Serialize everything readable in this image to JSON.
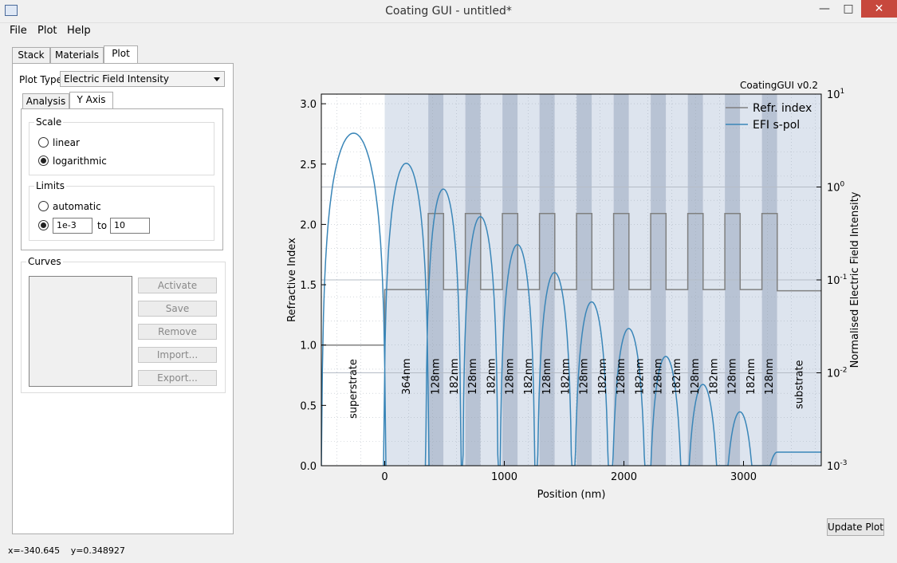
{
  "window": {
    "title": "Coating GUI - untitled*",
    "minimize": "—",
    "maximize": "□",
    "close": "✕"
  },
  "menu": [
    "File",
    "Plot",
    "Help"
  ],
  "main_tabs": [
    "Stack",
    "Materials",
    "Plot"
  ],
  "plot_type": {
    "label": "Plot Type",
    "value": "Electric Field Intensity"
  },
  "sub_tabs": [
    "Analysis",
    "Y Axis"
  ],
  "scale": {
    "title": "Scale",
    "options": [
      "linear",
      "logarithmic"
    ],
    "selected": "logarithmic"
  },
  "limits": {
    "title": "Limits",
    "automatic": "automatic",
    "from": "1e-3",
    "to_label": "to",
    "to": "10"
  },
  "curves": {
    "title": "Curves",
    "buttons": [
      "Activate",
      "Save",
      "Remove",
      "Import...",
      "Export..."
    ]
  },
  "update_button": "Update Plot",
  "status": {
    "x": "x=-340.645",
    "y": "y=0.348927"
  },
  "chart_data": {
    "type": "line",
    "corner_label": "CoatingGUI v0.2",
    "xlabel": "Position (nm)",
    "ylabel": "Refractive Index",
    "y2label": "Normalised Electric Field Intensity",
    "xlim": [
      -530,
      3650
    ],
    "ylim": [
      0,
      3.08
    ],
    "y2lim": [
      0.001,
      10
    ],
    "y2_scale": "log",
    "x_ticks": [
      "0",
      "1000",
      "2000",
      "3000"
    ],
    "y_ticks": [
      "0.0",
      "0.5",
      "1.0",
      "1.5",
      "2.0",
      "2.5",
      "3.0"
    ],
    "y2_ticks": [
      "10-3",
      "10-2",
      "10-1",
      "100",
      "101"
    ],
    "legend": [
      "Refr. index",
      "EFI s-pol"
    ],
    "colors": {
      "index": "#808080",
      "efi": "#3a86b8",
      "layer_low": "#dde4ee",
      "layer_high": "#b8c3d4"
    },
    "layers": [
      {
        "label": "superstrate",
        "start": -530,
        "end": 0,
        "n": 1.0
      },
      {
        "label": "364nm",
        "start": 0,
        "end": 364,
        "n": 1.46
      },
      {
        "label": "128nm",
        "start": 364,
        "end": 492,
        "n": 2.09
      },
      {
        "label": "182nm",
        "start": 492,
        "end": 674,
        "n": 1.46
      },
      {
        "label": "128nm",
        "start": 674,
        "end": 802,
        "n": 2.09
      },
      {
        "label": "182nm",
        "start": 802,
        "end": 984,
        "n": 1.46
      },
      {
        "label": "128nm",
        "start": 984,
        "end": 1112,
        "n": 2.09
      },
      {
        "label": "182nm",
        "start": 1112,
        "end": 1294,
        "n": 1.46
      },
      {
        "label": "128nm",
        "start": 1294,
        "end": 1422,
        "n": 2.09
      },
      {
        "label": "182nm",
        "start": 1422,
        "end": 1604,
        "n": 1.46
      },
      {
        "label": "128nm",
        "start": 1604,
        "end": 1732,
        "n": 2.09
      },
      {
        "label": "182nm",
        "start": 1732,
        "end": 1914,
        "n": 1.46
      },
      {
        "label": "128nm",
        "start": 1914,
        "end": 2042,
        "n": 2.09
      },
      {
        "label": "182nm",
        "start": 2042,
        "end": 2224,
        "n": 1.46
      },
      {
        "label": "128nm",
        "start": 2224,
        "end": 2352,
        "n": 2.09
      },
      {
        "label": "182nm",
        "start": 2352,
        "end": 2534,
        "n": 1.46
      },
      {
        "label": "128nm",
        "start": 2534,
        "end": 2662,
        "n": 2.09
      },
      {
        "label": "182nm",
        "start": 2662,
        "end": 2844,
        "n": 1.46
      },
      {
        "label": "128nm",
        "start": 2844,
        "end": 2972,
        "n": 2.09
      },
      {
        "label": "182nm",
        "start": 2972,
        "end": 3154,
        "n": 1.46
      },
      {
        "label": "128nm",
        "start": 3154,
        "end": 3282,
        "n": 2.09
      },
      {
        "label": "substrate",
        "start": 3282,
        "end": 3650,
        "n": 1.45
      }
    ],
    "efi_peaks": [
      {
        "x": -260,
        "v": 3.8,
        "halfwidth": 270
      },
      {
        "x": 180,
        "v": 1.8,
        "halfwidth": 190
      },
      {
        "x": 490,
        "v": 0.95,
        "halfwidth": 150
      },
      {
        "x": 800,
        "v": 0.48,
        "halfwidth": 150
      },
      {
        "x": 1110,
        "v": 0.24,
        "halfwidth": 150
      },
      {
        "x": 1420,
        "v": 0.12,
        "halfwidth": 150
      },
      {
        "x": 1730,
        "v": 0.058,
        "halfwidth": 150
      },
      {
        "x": 2040,
        "v": 0.03,
        "halfwidth": 150
      },
      {
        "x": 2350,
        "v": 0.015,
        "halfwidth": 150
      },
      {
        "x": 2660,
        "v": 0.0075,
        "halfwidth": 150
      },
      {
        "x": 2970,
        "v": 0.0038,
        "halfwidth": 150
      }
    ],
    "efi_substrate": 0.0014
  }
}
